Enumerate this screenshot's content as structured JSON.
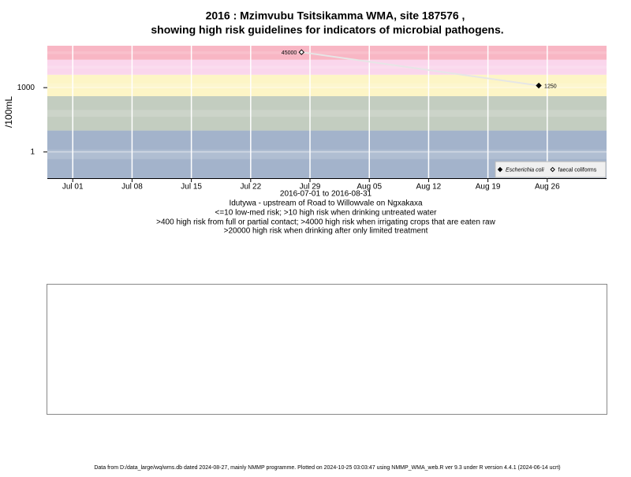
{
  "chart_data": {
    "type": "scatter",
    "title": "2016 : Mzimvubu Tsitsikamma WMA, site 187576 ,",
    "subtitle": "showing high risk guidelines for indicators of microbial pathogens.",
    "y_label": "/100mL",
    "x_label": "2016-07-01 to 2016-08-31",
    "notes": [
      "Idutywa - upstream of Road to Willowvale on Ngxakaxa",
      "<=10 low-med risk; >10 high risk when drinking untreated water",
      ">400 high risk from full or partial contact; >4000 high risk when irrigating crops that are eaten raw",
      ">20000 high risk when drinking after only limited treatment"
    ],
    "footer": "Data from D:/data_large/wq/wms.db dated 2024-08-27, mainly NMMP programme. Plotted on 2024-10-25 03:03:47 using NMMP_WMA_web.R ver 9.3 under R version 4.4.1 (2024-06-14 ucrt)",
    "log_y": true,
    "ylim": [
      0.06,
      90000
    ],
    "yticks": [
      1,
      1000
    ],
    "xlim": [
      "2016-06-28",
      "2016-09-02"
    ],
    "xticks": [
      {
        "value": "2016-07-01",
        "label": "Jul 01"
      },
      {
        "value": "2016-07-08",
        "label": "Jul 08"
      },
      {
        "value": "2016-07-15",
        "label": "Jul 15"
      },
      {
        "value": "2016-07-22",
        "label": "Jul 22"
      },
      {
        "value": "2016-07-29",
        "label": "Jul 29"
      },
      {
        "value": "2016-08-05",
        "label": "Aug 05"
      },
      {
        "value": "2016-08-12",
        "label": "Aug 12"
      },
      {
        "value": "2016-08-19",
        "label": "Aug 19"
      },
      {
        "value": "2016-08-26",
        "label": "Aug 26"
      }
    ],
    "thresholds": [
      10,
      400,
      4000,
      20000
    ],
    "band_colors": [
      "#a3b3cb",
      "#c3cdc0",
      "#fdf5c6",
      "#fad6ec",
      "#f8b6c4"
    ],
    "grid": true,
    "legend_position": "bottom-right",
    "series": [
      {
        "name": "Escherichia coli",
        "color": "#000000",
        "filled": true,
        "x": [
          "2016-08-25"
        ],
        "values": [
          1250
        ]
      },
      {
        "name": "faecal coliforms",
        "color": "#000000",
        "filled": false,
        "x": [
          "2016-07-28"
        ],
        "values": [
          45000
        ]
      }
    ]
  }
}
